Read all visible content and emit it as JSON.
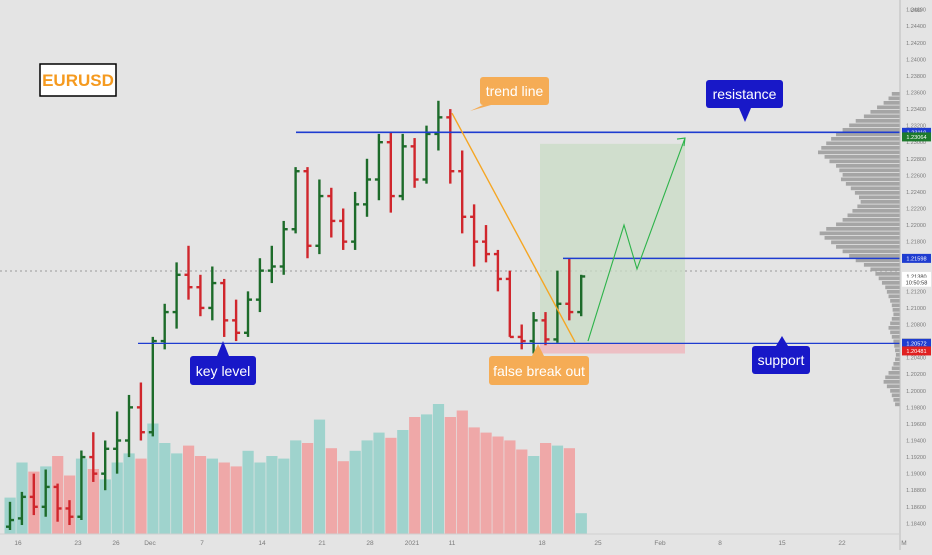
{
  "symbol_label": "EURUSD",
  "annotations": {
    "trend_line": "trend line",
    "resistance": "resistance",
    "support": "support",
    "key_level": "key level",
    "false_break_out": "false break out"
  },
  "price_axis": {
    "currency": "USD",
    "ticks": [
      "1.24600",
      "1.24400",
      "1.24200",
      "1.24000",
      "1.23800",
      "1.23600",
      "1.23400",
      "1.23200",
      "1.23000",
      "1.22800",
      "1.22600",
      "1.22400",
      "1.22200",
      "1.22000",
      "1.21800",
      "1.21600",
      "1.21400",
      "1.21200",
      "1.21000",
      "1.20800",
      "1.20600",
      "1.20400",
      "1.20200",
      "1.20000",
      "1.19800",
      "1.19600",
      "1.19400",
      "1.19200",
      "1.19000",
      "1.18800",
      "1.18600",
      "1.18400"
    ],
    "range": [
      1.1832,
      1.2468
    ],
    "badges": [
      {
        "text": "1.23119",
        "value": 1.23119,
        "color": "#1e3cd0"
      },
      {
        "text": "1.23064",
        "value": 1.23064,
        "color": "#1c7a2c"
      },
      {
        "text": "1.21598",
        "value": 1.21598,
        "color": "#1e3cd0"
      },
      {
        "text": "1.21380",
        "value": 1.2138,
        "color": "#ffffff"
      },
      {
        "text": "10:50:58",
        "value": 1.2131,
        "color": "#ffffff"
      },
      {
        "text": "1.20574",
        "value": 1.20574,
        "color": "#555555"
      },
      {
        "text": "1.20572",
        "value": 1.20572,
        "color": "#1e3cd0"
      },
      {
        "text": "1.20481",
        "value": 1.20481,
        "color": "#e02020"
      }
    ]
  },
  "time_axis": {
    "labels": [
      "16",
      "23",
      "26",
      "Dec",
      "7",
      "14",
      "21",
      "28",
      "2021",
      "11",
      "18",
      "25",
      "Feb",
      "8",
      "15",
      "22",
      "M"
    ]
  },
  "colors": {
    "up": "#1d6b2a",
    "down": "#d0262c",
    "level": "#1e3cd0",
    "trend": "#f5a623",
    "projection": "#2db34a",
    "vol_up": "#9fd3cd",
    "vol_down": "#efa8a8",
    "profile": "#9a9a9a",
    "target_zone": "#c9dcc6",
    "stop_zone": "#efb8be"
  },
  "chart_data": {
    "type": "ohlc",
    "levels": {
      "resistance": 1.23119,
      "support": 1.20572,
      "breakout": 1.21598
    },
    "bars": [
      {
        "o": 1.1836,
        "h": 1.1866,
        "l": 1.1832,
        "c": 1.1844,
        "v": 0.28
      },
      {
        "o": 1.1846,
        "h": 1.1878,
        "l": 1.1838,
        "c": 1.1872,
        "v": 0.55
      },
      {
        "o": 1.1872,
        "h": 1.19,
        "l": 1.185,
        "c": 1.186,
        "v": 0.48
      },
      {
        "o": 1.186,
        "h": 1.1905,
        "l": 1.1848,
        "c": 1.1884,
        "v": 0.52
      },
      {
        "o": 1.1884,
        "h": 1.1888,
        "l": 1.1842,
        "c": 1.1858,
        "v": 0.6
      },
      {
        "o": 1.1858,
        "h": 1.1868,
        "l": 1.1838,
        "c": 1.1848,
        "v": 0.45
      },
      {
        "o": 1.1848,
        "h": 1.1928,
        "l": 1.1844,
        "c": 1.192,
        "v": 0.58
      },
      {
        "o": 1.192,
        "h": 1.195,
        "l": 1.189,
        "c": 1.19,
        "v": 0.5
      },
      {
        "o": 1.19,
        "h": 1.194,
        "l": 1.188,
        "c": 1.193,
        "v": 0.42
      },
      {
        "o": 1.193,
        "h": 1.1975,
        "l": 1.19,
        "c": 1.194,
        "v": 0.55
      },
      {
        "o": 1.194,
        "h": 1.1995,
        "l": 1.192,
        "c": 1.198,
        "v": 0.62
      },
      {
        "o": 1.198,
        "h": 1.201,
        "l": 1.194,
        "c": 1.195,
        "v": 0.58
      },
      {
        "o": 1.195,
        "h": 1.2065,
        "l": 1.1945,
        "c": 1.206,
        "v": 0.85
      },
      {
        "o": 1.206,
        "h": 1.2105,
        "l": 1.205,
        "c": 1.2095,
        "v": 0.7
      },
      {
        "o": 1.2095,
        "h": 1.2155,
        "l": 1.2075,
        "c": 1.214,
        "v": 0.62
      },
      {
        "o": 1.214,
        "h": 1.2175,
        "l": 1.211,
        "c": 1.2125,
        "v": 0.68
      },
      {
        "o": 1.2125,
        "h": 1.214,
        "l": 1.209,
        "c": 1.21,
        "v": 0.6
      },
      {
        "o": 1.21,
        "h": 1.215,
        "l": 1.2085,
        "c": 1.213,
        "v": 0.58
      },
      {
        "o": 1.213,
        "h": 1.2135,
        "l": 1.2065,
        "c": 1.2085,
        "v": 0.55
      },
      {
        "o": 1.2085,
        "h": 1.211,
        "l": 1.206,
        "c": 1.207,
        "v": 0.52
      },
      {
        "o": 1.207,
        "h": 1.212,
        "l": 1.2065,
        "c": 1.211,
        "v": 0.64
      },
      {
        "o": 1.211,
        "h": 1.216,
        "l": 1.2095,
        "c": 1.2145,
        "v": 0.55
      },
      {
        "o": 1.2145,
        "h": 1.2175,
        "l": 1.213,
        "c": 1.215,
        "v": 0.6
      },
      {
        "o": 1.215,
        "h": 1.2205,
        "l": 1.214,
        "c": 1.2195,
        "v": 0.58
      },
      {
        "o": 1.2195,
        "h": 1.227,
        "l": 1.219,
        "c": 1.2265,
        "v": 0.72
      },
      {
        "o": 1.2265,
        "h": 1.227,
        "l": 1.216,
        "c": 1.2175,
        "v": 0.7
      },
      {
        "o": 1.2175,
        "h": 1.2255,
        "l": 1.2165,
        "c": 1.2235,
        "v": 0.88
      },
      {
        "o": 1.2235,
        "h": 1.2245,
        "l": 1.2185,
        "c": 1.2205,
        "v": 0.66
      },
      {
        "o": 1.2205,
        "h": 1.222,
        "l": 1.217,
        "c": 1.218,
        "v": 0.56
      },
      {
        "o": 1.218,
        "h": 1.224,
        "l": 1.217,
        "c": 1.2225,
        "v": 0.64
      },
      {
        "o": 1.2225,
        "h": 1.228,
        "l": 1.221,
        "c": 1.2255,
        "v": 0.72
      },
      {
        "o": 1.2255,
        "h": 1.231,
        "l": 1.223,
        "c": 1.23,
        "v": 0.78
      },
      {
        "o": 1.23,
        "h": 1.2312,
        "l": 1.2215,
        "c": 1.2235,
        "v": 0.74
      },
      {
        "o": 1.2235,
        "h": 1.231,
        "l": 1.223,
        "c": 1.2295,
        "v": 0.8
      },
      {
        "o": 1.2295,
        "h": 1.2305,
        "l": 1.2245,
        "c": 1.2255,
        "v": 0.9
      },
      {
        "o": 1.2255,
        "h": 1.232,
        "l": 1.225,
        "c": 1.231,
        "v": 0.92
      },
      {
        "o": 1.231,
        "h": 1.235,
        "l": 1.229,
        "c": 1.233,
        "v": 1.0
      },
      {
        "o": 1.233,
        "h": 1.234,
        "l": 1.225,
        "c": 1.2265,
        "v": 0.9
      },
      {
        "o": 1.2265,
        "h": 1.229,
        "l": 1.219,
        "c": 1.221,
        "v": 0.95
      },
      {
        "o": 1.221,
        "h": 1.2225,
        "l": 1.215,
        "c": 1.218,
        "v": 0.82
      },
      {
        "o": 1.218,
        "h": 1.22,
        "l": 1.2155,
        "c": 1.2165,
        "v": 0.78
      },
      {
        "o": 1.2165,
        "h": 1.217,
        "l": 1.212,
        "c": 1.2135,
        "v": 0.75
      },
      {
        "o": 1.2135,
        "h": 1.2145,
        "l": 1.2065,
        "c": 1.2065,
        "v": 0.72
      },
      {
        "o": 1.2065,
        "h": 1.208,
        "l": 1.205,
        "c": 1.206,
        "v": 0.65
      },
      {
        "o": 1.206,
        "h": 1.2095,
        "l": 1.2045,
        "c": 1.2085,
        "v": 0.6
      },
      {
        "o": 1.2085,
        "h": 1.2095,
        "l": 1.2055,
        "c": 1.2062,
        "v": 0.7
      },
      {
        "o": 1.2062,
        "h": 1.2145,
        "l": 1.2058,
        "c": 1.2105,
        "v": 0.68
      },
      {
        "o": 1.2105,
        "h": 1.216,
        "l": 1.2085,
        "c": 1.2095,
        "v": 0.66
      },
      {
        "o": 1.2095,
        "h": 1.214,
        "l": 1.209,
        "c": 1.2138,
        "v": 0.16
      }
    ],
    "volume_profile": [
      0.1,
      0.14,
      0.2,
      0.28,
      0.36,
      0.44,
      0.54,
      0.62,
      0.7,
      0.78,
      0.84,
      0.9,
      0.96,
      1.0,
      0.92,
      0.86,
      0.78,
      0.74,
      0.7,
      0.72,
      0.66,
      0.6,
      0.55,
      0.5,
      0.48,
      0.52,
      0.58,
      0.64,
      0.7,
      0.78,
      0.9,
      0.98,
      0.92,
      0.84,
      0.78,
      0.7,
      0.62,
      0.54,
      0.44,
      0.36,
      0.3,
      0.26,
      0.22,
      0.18,
      0.16,
      0.14,
      0.12,
      0.1,
      0.09,
      0.08,
      0.1,
      0.12,
      0.14,
      0.12,
      0.1,
      0.08,
      0.07,
      0.06,
      0.05,
      0.06,
      0.08,
      0.1,
      0.14,
      0.18,
      0.2,
      0.16,
      0.12,
      0.1,
      0.08,
      0.06
    ]
  }
}
